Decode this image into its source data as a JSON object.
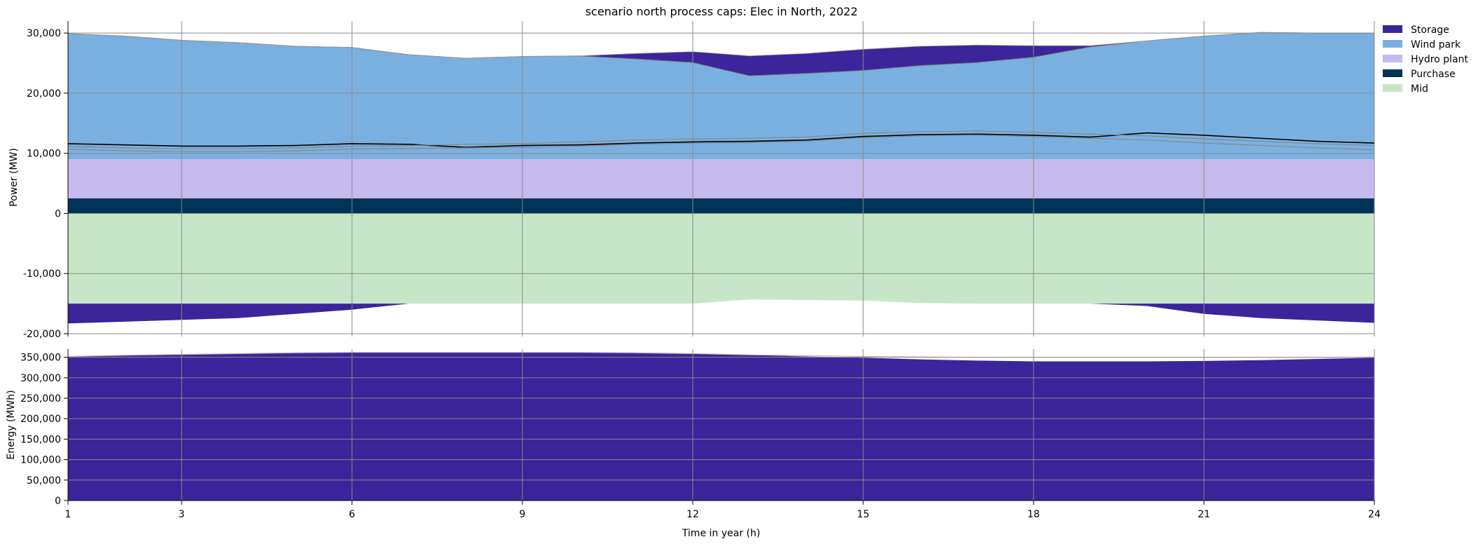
{
  "chart_data": [
    {
      "type": "area",
      "title": "scenario north process caps: Elec in North, 2022",
      "xlabel": "",
      "ylabel": "Power (MW)",
      "x": [
        1,
        2,
        3,
        4,
        5,
        6,
        7,
        8,
        9,
        10,
        11,
        12,
        13,
        14,
        15,
        16,
        17,
        18,
        19,
        20,
        21,
        22,
        23,
        24
      ],
      "xlim": [
        1,
        24
      ],
      "ylim": [
        -20000,
        32000
      ],
      "xticks": [
        "1",
        "3",
        "6",
        "9",
        "12",
        "15",
        "18",
        "21",
        "24"
      ],
      "xtick_values": [
        1,
        3,
        6,
        9,
        12,
        15,
        18,
        21,
        24
      ],
      "yticks": [
        "-20,000",
        "-10,000",
        "0",
        "10,000",
        "20,000",
        "30,000"
      ],
      "ytick_values": [
        -20000,
        -10000,
        0,
        10000,
        20000,
        30000
      ],
      "grid": true,
      "legend_position": "top-right",
      "stack_order": "positive stacked bottom-up: Purchase, Hydro plant, Wind park, Storage; negative stacked downward: Mid, Storage",
      "series": [
        {
          "name": "Storage",
          "color": "#3c249b",
          "positive": [
            0,
            0,
            0,
            0,
            0,
            0,
            0,
            0,
            0,
            0,
            900,
            1800,
            3300,
            3300,
            3500,
            3200,
            2900,
            1900,
            200,
            0,
            0,
            0,
            0,
            0
          ],
          "negative": [
            -3300,
            -3000,
            -2700,
            -2400,
            -1700,
            -1000,
            0,
            0,
            0,
            0,
            0,
            0,
            0,
            0,
            0,
            0,
            0,
            0,
            0,
            -400,
            -1700,
            -2400,
            -2800,
            -3200
          ]
        },
        {
          "name": "Wind park",
          "color": "#7ab0e0",
          "values": [
            20900,
            20500,
            19800,
            19400,
            18800,
            18600,
            17400,
            16800,
            17100,
            17200,
            16700,
            16100,
            13900,
            14300,
            14800,
            15600,
            16100,
            17000,
            18700,
            19700,
            20500,
            21100,
            21000,
            21000
          ]
        },
        {
          "name": "Hydro plant",
          "color": "#c5b9ee",
          "values": [
            6500,
            6500,
            6500,
            6500,
            6500,
            6500,
            6500,
            6500,
            6500,
            6500,
            6500,
            6500,
            6500,
            6500,
            6500,
            6500,
            6500,
            6500,
            6500,
            6500,
            6500,
            6500,
            6500,
            6500
          ]
        },
        {
          "name": "Purchase",
          "color": "#003358",
          "values": [
            2500,
            2500,
            2500,
            2500,
            2500,
            2500,
            2500,
            2500,
            2500,
            2500,
            2500,
            2500,
            2500,
            2500,
            2500,
            2500,
            2500,
            2500,
            2500,
            2500,
            2500,
            2500,
            2500,
            2500
          ]
        },
        {
          "name": "Mid",
          "color": "#c7e6c8",
          "values": [
            -15000,
            -15000,
            -15000,
            -15000,
            -15000,
            -15000,
            -15000,
            -15000,
            -15000,
            -15000,
            -15000,
            -15000,
            -14300,
            -14400,
            -14500,
            -14900,
            -15000,
            -15000,
            -15000,
            -15000,
            -15000,
            -15000,
            -15000,
            -15000
          ]
        }
      ],
      "lines": [
        {
          "name": "",
          "color": "#000000",
          "values": [
            11600,
            11400,
            11200,
            11200,
            11300,
            11600,
            11500,
            11000,
            11300,
            11400,
            11700,
            11900,
            12000,
            12200,
            12800,
            13100,
            13200,
            13000,
            12700,
            13400,
            13000,
            12500,
            12000,
            11700
          ]
        },
        {
          "name": "",
          "color": "#888888",
          "values": [
            11200,
            10900,
            10800,
            10800,
            10900,
            11200,
            11300,
            11500,
            11600,
            11900,
            12200,
            12400,
            12500,
            12700,
            13300,
            13600,
            13700,
            13500,
            13200,
            12900,
            12400,
            12000,
            11600,
            11300
          ]
        },
        {
          "name": "",
          "color": "#888888",
          "values": [
            10700,
            10400,
            10300,
            10300,
            10400,
            10700,
            10800,
            10900,
            11000,
            11200,
            11500,
            11700,
            11800,
            12000,
            12600,
            12900,
            13000,
            12800,
            12500,
            12200,
            11700,
            11300,
            10900,
            10600
          ]
        }
      ]
    },
    {
      "type": "area",
      "title": "",
      "xlabel": "Time in year (h)",
      "ylabel": "Energy (MWh)",
      "x": [
        1,
        2,
        3,
        4,
        5,
        6,
        7,
        8,
        9,
        10,
        11,
        12,
        13,
        14,
        15,
        16,
        17,
        18,
        19,
        20,
        21,
        22,
        23,
        24
      ],
      "xlim": [
        1,
        24
      ],
      "ylim": [
        0,
        370000
      ],
      "xticks": [
        "1",
        "3",
        "6",
        "9",
        "12",
        "15",
        "18",
        "21",
        "24"
      ],
      "xtick_values": [
        1,
        3,
        6,
        9,
        12,
        15,
        18,
        21,
        24
      ],
      "yticks": [
        "0",
        "50,000",
        "100,000",
        "150,000",
        "200,000",
        "250,000",
        "300,000",
        "350,000"
      ],
      "ytick_values": [
        0,
        50000,
        100000,
        150000,
        200000,
        250000,
        300000,
        350000
      ],
      "grid": true,
      "series": [
        {
          "name": "Storage",
          "color": "#3c249b",
          "values": [
            352000,
            355000,
            357000,
            359000,
            361000,
            362000,
            362000,
            362000,
            362000,
            362000,
            361000,
            359000,
            356000,
            352000,
            349000,
            345000,
            342000,
            340000,
            340000,
            340000,
            341000,
            343000,
            346000,
            349000
          ],
          "cap": [
            352000,
            355000,
            357000,
            359000,
            361000,
            362000,
            362000,
            362000,
            362000,
            362000,
            361000,
            359000,
            356000,
            354000,
            352000,
            351000,
            350000,
            350000,
            350000,
            350000,
            350000,
            350000,
            350000,
            350000
          ]
        }
      ]
    }
  ]
}
